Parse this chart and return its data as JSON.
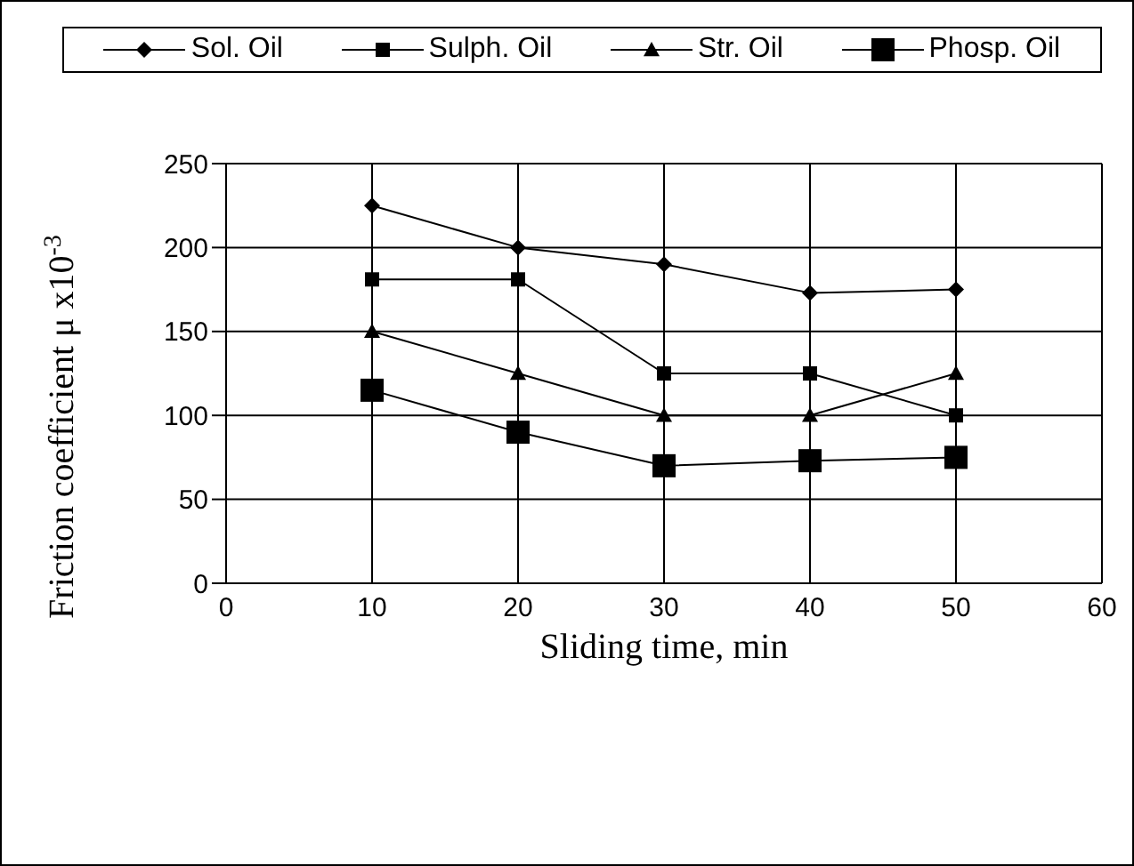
{
  "chart_data": {
    "type": "line",
    "xlabel": "Sliding time, min",
    "ylabel": "Friction coefficient μ x10$^{-3}$",
    "x": [
      10,
      20,
      30,
      40,
      50
    ],
    "series": [
      {
        "name": "Sol. Oil",
        "color": "#000000",
        "marker": "diamond",
        "values": [
          225,
          200,
          190,
          173,
          175
        ]
      },
      {
        "name": "Sulph. Oil",
        "color": "#000000",
        "marker": "square",
        "values": [
          181,
          181,
          125,
          125,
          100
        ]
      },
      {
        "name": "Str. Oil",
        "color": "#000000",
        "marker": "triangle",
        "values": [
          150,
          125,
          100,
          100,
          125
        ]
      },
      {
        "name": "Phosp. Oil",
        "color": "#000000",
        "marker": "square",
        "values": [
          115,
          90,
          70,
          73,
          75
        ]
      }
    ],
    "xlim": [
      0,
      60
    ],
    "xticks": [
      0,
      10,
      20,
      30,
      40,
      50,
      60
    ],
    "ylim": [
      0,
      250
    ],
    "yticks": [
      0,
      50,
      100,
      150,
      200,
      250
    ],
    "grid": true,
    "legend": "top",
    "line_style": "solid"
  }
}
